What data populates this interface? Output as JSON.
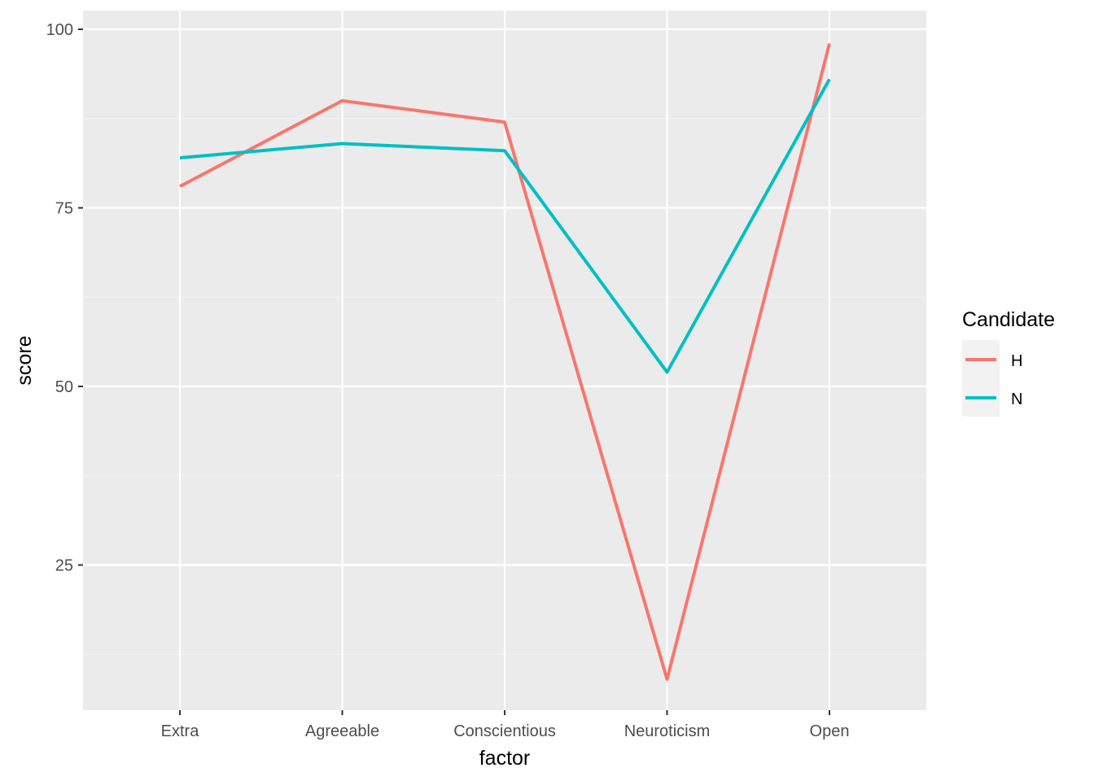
{
  "chart_data": {
    "type": "line",
    "xlabel": "factor",
    "ylabel": "score",
    "categories": [
      "Extra",
      "Agreeable",
      "Conscientious",
      "Neuroticism",
      "Open"
    ],
    "ylim": [
      5,
      103
    ],
    "yticks": [
      25,
      50,
      75,
      100
    ],
    "grid": true,
    "legend": {
      "title": "Candidate",
      "position": "right"
    },
    "series": [
      {
        "name": "H",
        "color": "#F8766D",
        "values": [
          78,
          90,
          87,
          9,
          98
        ]
      },
      {
        "name": "N",
        "color": "#00BFC4",
        "values": [
          82,
          84,
          83,
          52,
          93
        ]
      }
    ]
  },
  "colors": {
    "panel_background": "#EBEBEB",
    "grid_major": "#FFFFFF",
    "grid_minor": "#F5F5F5",
    "tick_text": "#4D4D4D"
  }
}
